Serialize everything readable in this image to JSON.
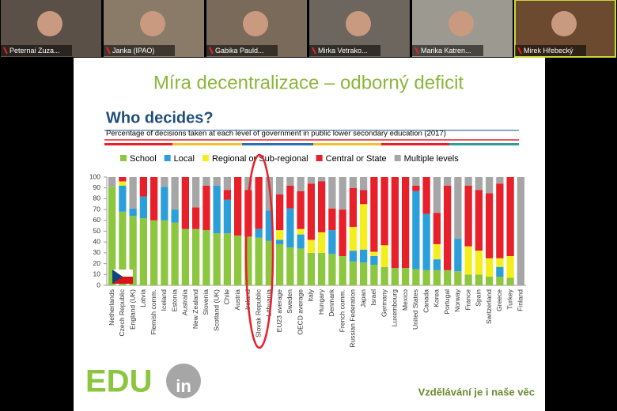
{
  "participants": [
    "Peternai Zuza...",
    "Janka (IPAO)",
    "Gabika Pauld...",
    "Mirka Vetrako...",
    "Marika Katren...",
    "Mirek Hřebecký"
  ],
  "slide": {
    "title": "Míra decentralizace – odborný deficit",
    "brand": "EDU",
    "brand_suffix": "in",
    "slogan": "Vzdělávání je i naše věc"
  },
  "chart_data": {
    "type": "stacked-bar",
    "title": "Who decides?",
    "subtitle": "Percentage of decisions taken at each level of government in public lower secondary education (2017)",
    "categories": [
      "Netherlands",
      "Czech Republic",
      "England (UK)",
      "Latvia",
      "Flemish comm.",
      "Iceland",
      "Estonia",
      "Australia",
      "New Zealand",
      "Slovenia",
      "Scotland (UK)",
      "Chile",
      "Austria",
      "Ireland",
      "Slovak Republic",
      "Lithuania",
      "EU23 average",
      "Sweden",
      "OECD average",
      "Italy",
      "Hungary",
      "Denmark",
      "French comm.",
      "Russian Federation",
      "Japan",
      "Israel",
      "Germany",
      "Luxembourg",
      "Mexico",
      "United States",
      "Canada",
      "Korea",
      "Portugal",
      "Norway",
      "France",
      "Spain",
      "Switzerland",
      "Greece",
      "Turkey",
      "Finland"
    ],
    "series": [
      {
        "name": "School",
        "color": "#8dc63f",
        "values": [
          91,
          68,
          64,
          62,
          60,
          60,
          58,
          52,
          52,
          51,
          48,
          48,
          46,
          45,
          44,
          41,
          38,
          35,
          34,
          30,
          30,
          29,
          27,
          22,
          21,
          19,
          17,
          16,
          16,
          15,
          14,
          14,
          14,
          13,
          10,
          10,
          8,
          8,
          7,
          0
        ]
      },
      {
        "name": "Local",
        "color": "#2b9fd9",
        "values": [
          0,
          24,
          7,
          20,
          0,
          31,
          12,
          0,
          0,
          0,
          44,
          31,
          0,
          0,
          8,
          28,
          4,
          36,
          13,
          0,
          0,
          22,
          0,
          10,
          12,
          8,
          0,
          0,
          0,
          72,
          52,
          10,
          0,
          30,
          0,
          0,
          0,
          9,
          0,
          0
        ]
      },
      {
        "name": "Regional or Sub-regional",
        "color": "#f5ee1e",
        "values": [
          0,
          4,
          0,
          0,
          0,
          0,
          0,
          0,
          0,
          0,
          0,
          0,
          0,
          0,
          0,
          0,
          9,
          0,
          5,
          12,
          19,
          0,
          0,
          22,
          42,
          4,
          20,
          0,
          0,
          0,
          0,
          14,
          0,
          0,
          26,
          22,
          17,
          8,
          20,
          0
        ]
      },
      {
        "name": "Central or State",
        "color": "#e8202a",
        "values": [
          0,
          4,
          0,
          18,
          40,
          0,
          0,
          48,
          20,
          41,
          0,
          9,
          54,
          43,
          48,
          0,
          33,
          21,
          35,
          52,
          47,
          20,
          43,
          36,
          13,
          69,
          63,
          84,
          84,
          5,
          34,
          29,
          78,
          0,
          56,
          56,
          60,
          69,
          73,
          0
        ]
      },
      {
        "name": "Multiple levels",
        "color": "#a6a6a6",
        "values": [
          9,
          0,
          29,
          0,
          0,
          9,
          30,
          0,
          28,
          8,
          8,
          12,
          0,
          12,
          0,
          31,
          16,
          8,
          13,
          6,
          4,
          29,
          30,
          10,
          12,
          0,
          0,
          0,
          0,
          8,
          0,
          33,
          8,
          57,
          8,
          12,
          15,
          6,
          0,
          100
        ]
      }
    ],
    "ylim": [
      0,
      100
    ],
    "yticks": [
      0,
      10,
      20,
      30,
      40,
      50,
      60,
      70,
      80,
      90,
      100
    ]
  }
}
